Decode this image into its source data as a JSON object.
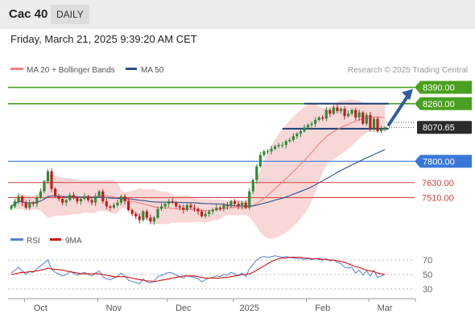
{
  "header": {
    "title": "Cac 40",
    "timeframe_tab": "DAILY"
  },
  "timestamp": "Friday, March 21, 2025 9:39:20 AM CET",
  "colors": {
    "up_candle": "#2e8b3a",
    "down_candle": "#c21f1f",
    "ma20": "#f08080",
    "bollinger_fill": "#f7d0d0",
    "ma50": "#2c4f8f",
    "resistance": "#4aa020",
    "support": "#3a78d8",
    "secondary": "#d04040",
    "rsi": "#5a7fd0",
    "rsi_ma": "#d01010"
  },
  "chart_data": [
    {
      "type": "candlestick",
      "legend": [
        {
          "label": "MA 20 + Bollinger Bands",
          "color": "#f08080"
        },
        {
          "label": "MA 50",
          "color": "#2c4f8f"
        }
      ],
      "credit": "Research © 2025 Trading Central",
      "ylim": [
        7275,
        8445
      ],
      "x_ticks": [
        "Oct",
        "Nov",
        "Dec",
        "2025",
        "Feb",
        "Mar"
      ],
      "x_tick_index": [
        8,
        28,
        47,
        65,
        85,
        102
      ],
      "closes": [
        7440,
        7480,
        7520,
        7470,
        7430,
        7470,
        7460,
        7510,
        7560,
        7640,
        7720,
        7580,
        7520,
        7500,
        7470,
        7490,
        7530,
        7510,
        7480,
        7500,
        7520,
        7490,
        7470,
        7520,
        7560,
        7480,
        7440,
        7430,
        7450,
        7470,
        7520,
        7480,
        7410,
        7380,
        7360,
        7330,
        7400,
        7350,
        7320,
        7350,
        7420,
        7440,
        7460,
        7480,
        7470,
        7440,
        7430,
        7410,
        7450,
        7430,
        7420,
        7400,
        7360,
        7380,
        7400,
        7410,
        7430,
        7420,
        7450,
        7440,
        7480,
        7460,
        7440,
        7470,
        7430,
        7560,
        7650,
        7760,
        7850,
        7880,
        7880,
        7900,
        7920,
        7930,
        7930,
        7960,
        7970,
        8000,
        8020,
        8040,
        8070,
        8090,
        8100,
        8130,
        8150,
        8140,
        8210,
        8180,
        8230,
        8200,
        8220,
        8160,
        8180,
        8210,
        8150,
        8190,
        8100,
        8170,
        8060,
        8140,
        8040,
        8060,
        8070
      ],
      "opens": [
        7420,
        7440,
        7480,
        7520,
        7470,
        7430,
        7470,
        7460,
        7510,
        7560,
        7640,
        7720,
        7580,
        7520,
        7500,
        7470,
        7490,
        7530,
        7510,
        7480,
        7500,
        7520,
        7490,
        7470,
        7520,
        7560,
        7480,
        7440,
        7430,
        7450,
        7470,
        7520,
        7480,
        7410,
        7380,
        7360,
        7330,
        7400,
        7350,
        7320,
        7350,
        7420,
        7440,
        7460,
        7480,
        7470,
        7440,
        7430,
        7410,
        7450,
        7430,
        7420,
        7400,
        7360,
        7380,
        7400,
        7410,
        7430,
        7420,
        7450,
        7440,
        7480,
        7460,
        7440,
        7470,
        7430,
        7560,
        7650,
        7760,
        7850,
        7880,
        7880,
        7900,
        7920,
        7930,
        7930,
        7960,
        7970,
        8000,
        8020,
        8040,
        8070,
        8090,
        8100,
        8130,
        8150,
        8140,
        8210,
        8180,
        8230,
        8200,
        8220,
        8160,
        8180,
        8210,
        8150,
        8190,
        8100,
        8170,
        8060,
        8140,
        8040,
        8060
      ],
      "levels": [
        {
          "value": 8390.0,
          "label": "8390.00",
          "kind": "resistance"
        },
        {
          "value": 8260.0,
          "label": "8260.00",
          "kind": "resistance"
        },
        {
          "value": 8070.65,
          "label": "8070.65",
          "kind": "last_price"
        },
        {
          "value": 7800.0,
          "label": "7800.00",
          "kind": "support"
        },
        {
          "value": 7630.0,
          "label": "7630.00",
          "kind": "secondary"
        },
        {
          "value": 7510.0,
          "label": "7510.00",
          "kind": "secondary"
        }
      ],
      "channel": {
        "top": 8260,
        "bottom": 8060,
        "top_from": 80,
        "bottom_from": 74,
        "to": 103
      },
      "projection": {
        "from": 8070,
        "to": 8390,
        "direction": "up"
      }
    },
    {
      "type": "line",
      "legend": [
        {
          "label": "RSI",
          "color": "#5a7fd0"
        },
        {
          "label": "9MA",
          "color": "#d01010"
        }
      ],
      "ylim": [
        22,
        78
      ],
      "ticks": [
        "70",
        "50",
        "30"
      ],
      "tick_values": [
        70,
        50,
        30
      ],
      "series": [
        {
          "name": "RSI",
          "values": [
            52,
            56,
            60,
            55,
            50,
            54,
            53,
            58,
            62,
            66,
            70,
            58,
            53,
            51,
            48,
            50,
            54,
            52,
            49,
            51,
            53,
            50,
            48,
            52,
            55,
            47,
            44,
            43,
            45,
            47,
            52,
            48,
            42,
            40,
            39,
            37,
            44,
            40,
            38,
            41,
            47,
            49,
            51,
            53,
            52,
            49,
            47,
            45,
            49,
            47,
            46,
            44,
            40,
            43,
            45,
            46,
            48,
            47,
            50,
            49,
            53,
            51,
            48,
            52,
            47,
            58,
            64,
            70,
            74,
            75,
            74,
            75,
            76,
            75,
            74,
            75,
            74,
            73,
            72,
            72,
            71,
            72,
            71,
            72,
            71,
            70,
            72,
            69,
            70,
            67,
            65,
            60,
            59,
            60,
            52,
            56,
            49,
            55,
            48,
            56,
            46,
            48,
            50
          ]
        },
        {
          "name": "9MA",
          "values": [
            50,
            51,
            52,
            53,
            53,
            54,
            54,
            55,
            56,
            57,
            59,
            58,
            57,
            57,
            56,
            55,
            54,
            53,
            52,
            51,
            51,
            51,
            51,
            51,
            51,
            50,
            49,
            48,
            47,
            47,
            47,
            47,
            46,
            45,
            44,
            43,
            42,
            41,
            41,
            40,
            41,
            42,
            43,
            44,
            45,
            46,
            47,
            48,
            48,
            48,
            48,
            47,
            46,
            45,
            45,
            45,
            45,
            45,
            46,
            46,
            47,
            48,
            49,
            50,
            50,
            51,
            53,
            56,
            59,
            62,
            65,
            68,
            70,
            72,
            73,
            73,
            74,
            74,
            74,
            74,
            73,
            73,
            72,
            72,
            72,
            71,
            71,
            70,
            70,
            69,
            68,
            67,
            65,
            63,
            61,
            60,
            58,
            56,
            55,
            54,
            52,
            51,
            50
          ]
        }
      ]
    }
  ]
}
